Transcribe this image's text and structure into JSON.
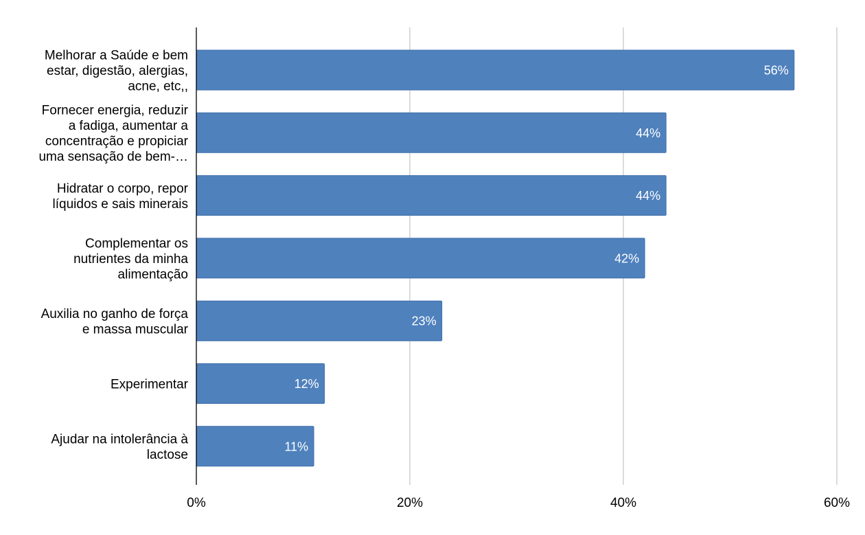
{
  "chart_data": {
    "type": "bar",
    "orientation": "horizontal",
    "title": "",
    "xlabel": "",
    "ylabel": "",
    "categories": [
      [
        "Melhorar a Saúde e bem",
        "estar, digestão, alergias,",
        "acne, etc,,"
      ],
      [
        "Fornecer energia, reduzir",
        "a fadiga, aumentar a",
        "concentração e propiciar",
        "uma sensação de bem-…"
      ],
      [
        "Hidratar o corpo, repor",
        "líquidos e sais minerais"
      ],
      [
        "Complementar os",
        "nutrientes da minha",
        "alimentação"
      ],
      [
        "Auxilia no ganho de força",
        "e massa muscular"
      ],
      [
        "Experimentar"
      ],
      [
        "Ajudar na intolerância à",
        "lactose"
      ]
    ],
    "values": [
      56,
      44,
      44,
      42,
      23,
      12,
      11
    ],
    "data_labels": [
      "56%",
      "44%",
      "44%",
      "42%",
      "23%",
      "12%",
      "11%"
    ],
    "xlim": [
      0,
      60
    ],
    "ticks": [
      0,
      20,
      40,
      60
    ],
    "tick_labels": [
      "0%",
      "20%",
      "40%",
      "60%"
    ],
    "grid": true,
    "legend": "none",
    "colors": {
      "bar": "#4f81bd",
      "bar_stroke": "#3f6ea8",
      "grid": "#c8c8c8",
      "axis": "#000000",
      "data_label": "#ffffff"
    }
  }
}
